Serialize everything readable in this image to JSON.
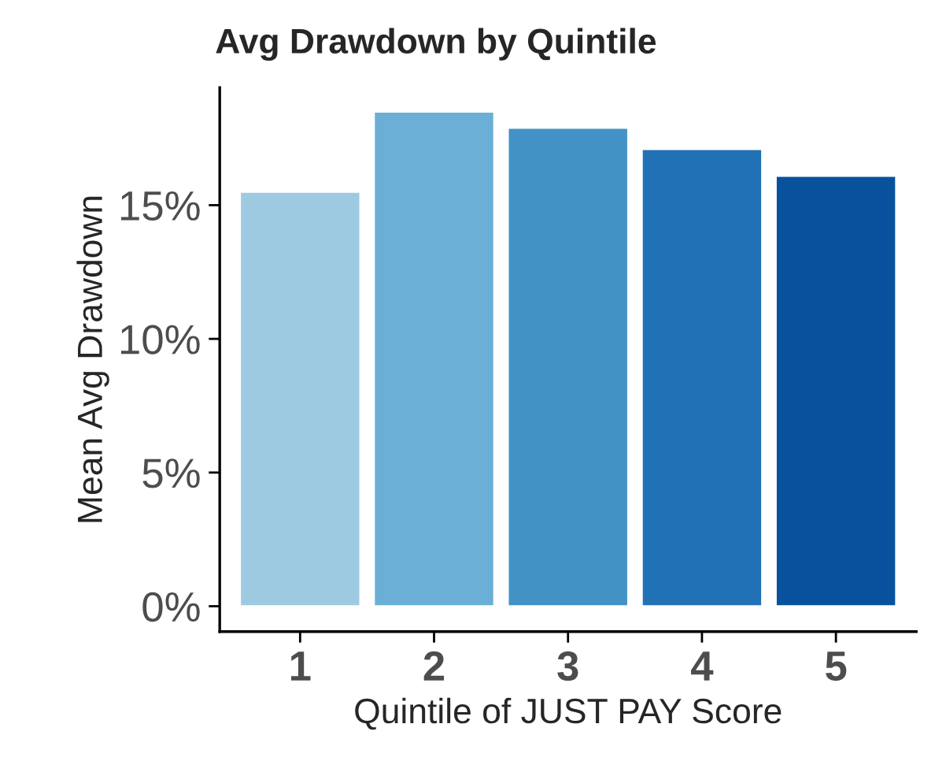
{
  "chart_data": {
    "type": "bar",
    "title": "Avg Drawdown by Quintile",
    "xlabel": "Quintile of JUST PAY Score",
    "ylabel": "Mean Avg Drawdown",
    "categories": [
      "1",
      "2",
      "3",
      "4",
      "5"
    ],
    "values": [
      15.5,
      18.5,
      17.9,
      17.1,
      16.1
    ],
    "colors": [
      "#9ecae1",
      "#6baed6",
      "#4292c6",
      "#2171b5",
      "#08519c"
    ],
    "ylim": [
      -0.95,
      19.4
    ],
    "yticks": [
      {
        "value": 0,
        "label": "0%"
      },
      {
        "value": 5,
        "label": "5%"
      },
      {
        "value": 10,
        "label": "10%"
      },
      {
        "value": 15,
        "label": "15%"
      }
    ],
    "grid": false,
    "legend": false
  }
}
